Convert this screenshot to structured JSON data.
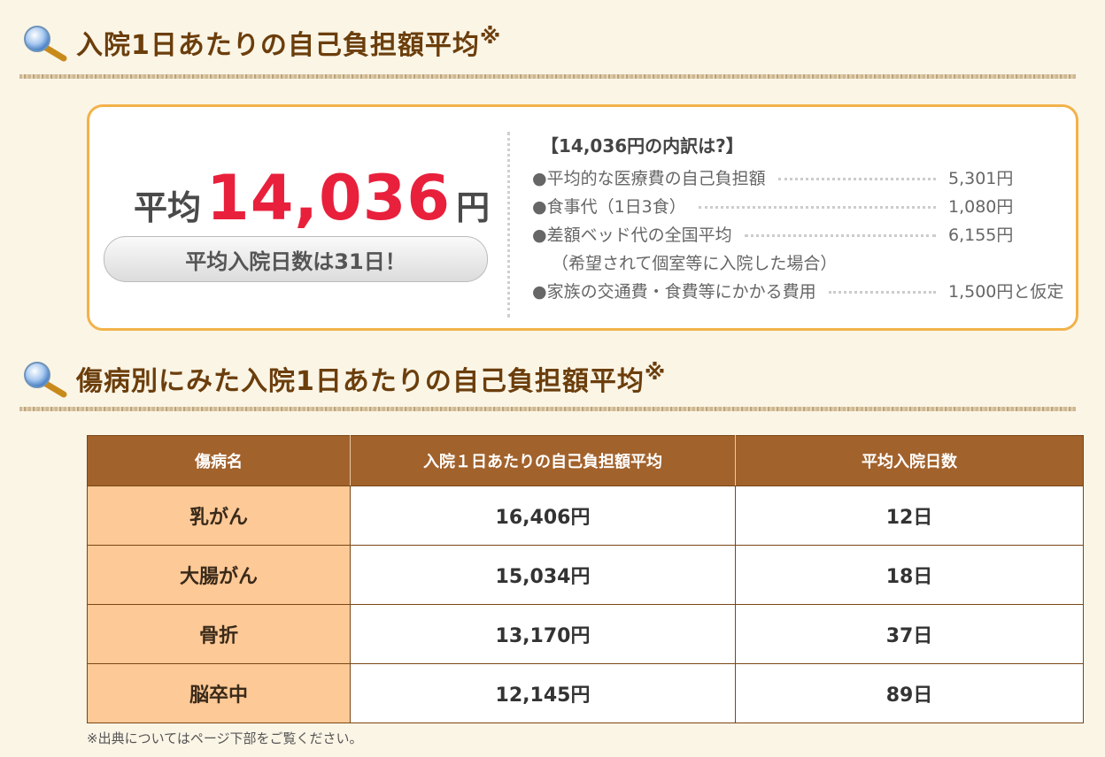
{
  "section1": {
    "title": "入院1日あたりの自己負担額平均",
    "mark": "※"
  },
  "summary": {
    "prefix": "平均",
    "value": "14,036",
    "unit": "円",
    "days_label": "平均入院日数は31日！",
    "breakdown_title": "【14,036円の内訳は?】",
    "items": [
      {
        "label": "●平均的な医療費の自己負担額",
        "amount": "5,301円"
      },
      {
        "label": "●食事代（1日3食）",
        "amount": "1,080円"
      },
      {
        "label": "●差額ベッド代の全国平均",
        "amount": "6,155円"
      },
      {
        "label": "（希望されて個室等に入院した場合）",
        "amount": ""
      },
      {
        "label": "●家族の交通費・食費等にかかる費用",
        "amount": "1,500円と仮定"
      }
    ]
  },
  "section2": {
    "title": "傷病別にみた入院1日あたりの自己負担額平均",
    "mark": "※"
  },
  "table": {
    "headers": [
      "傷病名",
      "入院１日あたりの自己負担額平均",
      "平均入院日数"
    ],
    "rows": [
      [
        "乳がん",
        "16,406円",
        "12日"
      ],
      [
        "大腸がん",
        "15,034円",
        "18日"
      ],
      [
        "骨折",
        "13,170円",
        "37日"
      ],
      [
        "脳卒中",
        "12,145円",
        "89日"
      ]
    ]
  },
  "footnote": "※出典についてはページ下部をご覧ください。",
  "colors": {
    "accent": "#e8203c",
    "brown": "#a2622c",
    "orange_border": "#f2b24a",
    "name_cell": "#fdc996"
  },
  "icons": [
    "magnifier-icon",
    "magnifier-icon"
  ]
}
